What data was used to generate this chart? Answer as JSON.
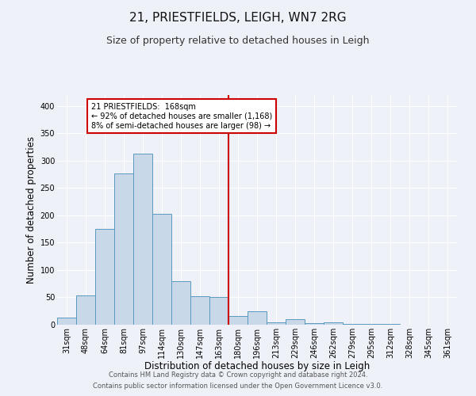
{
  "title": "21, PRIESTFIELDS, LEIGH, WN7 2RG",
  "subtitle": "Size of property relative to detached houses in Leigh",
  "xlabel": "Distribution of detached houses by size in Leigh",
  "ylabel": "Number of detached properties",
  "footer_line1": "Contains HM Land Registry data © Crown copyright and database right 2024.",
  "footer_line2": "Contains public sector information licensed under the Open Government Licence v3.0.",
  "bin_labels": [
    "31sqm",
    "48sqm",
    "64sqm",
    "81sqm",
    "97sqm",
    "114sqm",
    "130sqm",
    "147sqm",
    "163sqm",
    "180sqm",
    "196sqm",
    "213sqm",
    "229sqm",
    "246sqm",
    "262sqm",
    "279sqm",
    "295sqm",
    "312sqm",
    "328sqm",
    "345sqm",
    "361sqm"
  ],
  "bar_heights": [
    13,
    53,
    175,
    277,
    313,
    203,
    80,
    52,
    50,
    16,
    25,
    5,
    10,
    3,
    5,
    2,
    2,
    1,
    0,
    0,
    0
  ],
  "bar_color": "#c8d8e8",
  "bar_edge_color": "#5a9abf",
  "vline_idx": 8,
  "vline_color": "#cc0000",
  "annotation_text": "21 PRIESTFIELDS:  168sqm\n← 92% of detached houses are smaller (1,168)\n8% of semi-detached houses are larger (98) →",
  "annotation_box_color": "#ffffff",
  "annotation_box_edge": "#cc0000",
  "ylim": [
    0,
    420
  ],
  "yticks": [
    0,
    50,
    100,
    150,
    200,
    250,
    300,
    350,
    400
  ],
  "bg_color": "#eef2f8",
  "plot_bg_color": "#eef2f8",
  "title_fontsize": 11,
  "subtitle_fontsize": 9,
  "axis_label_fontsize": 8.5,
  "tick_fontsize": 7,
  "footer_fontsize": 6
}
